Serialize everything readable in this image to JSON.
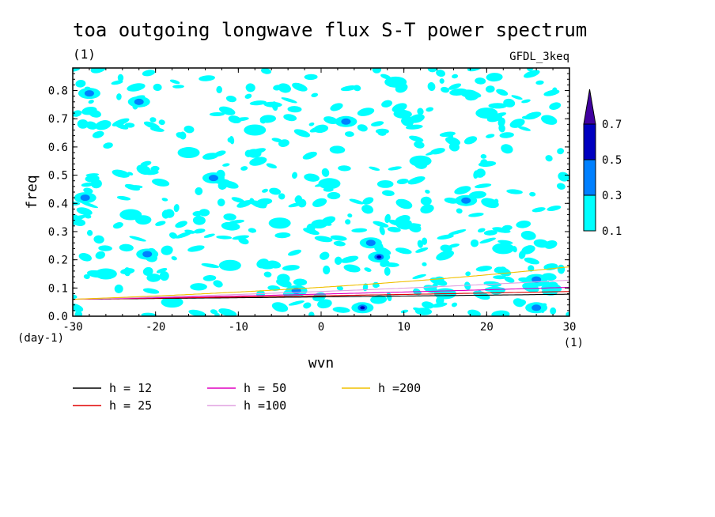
{
  "chart_data": {
    "type": "heatmap",
    "title": "toa outgoing longwave flux S-T power spectrum",
    "subtitle_left": "(1)",
    "subtitle_right": "GFDL_3keq",
    "xlabel": "wvn",
    "ylabel": "freq",
    "x_unit": "(1)",
    "y_unit": "(day-1)",
    "xlim": [
      -30,
      30
    ],
    "ylim": [
      0.0,
      0.88
    ],
    "x_ticks": [
      -30,
      -20,
      -10,
      0,
      10,
      20,
      30
    ],
    "x_tick_labels": [
      "-30",
      "-20",
      "-10",
      "0",
      "10",
      "20",
      "30"
    ],
    "y_ticks": [
      0.0,
      0.1,
      0.2,
      0.3,
      0.4,
      0.5,
      0.6,
      0.7,
      0.8
    ],
    "y_tick_labels": [
      "0.0",
      "0.1",
      "0.2",
      "0.3",
      "0.4",
      "0.5",
      "0.6",
      "0.7",
      "0.8"
    ],
    "colorbar": {
      "levels": [
        0.1,
        0.3,
        0.5,
        0.7
      ],
      "labels": [
        "0.1",
        "0.3",
        "0.5",
        "0.7"
      ],
      "colors": [
        "#00ffff",
        "#0080ff",
        "#0000c0",
        "#4000a0"
      ]
    },
    "contour_blobs": [
      {
        "x": -28,
        "y": 0.79,
        "level": 1
      },
      {
        "x": -22,
        "y": 0.76,
        "level": 1
      },
      {
        "x": -28.5,
        "y": 0.42,
        "level": 1
      },
      {
        "x": -21,
        "y": 0.22,
        "level": 1
      },
      {
        "x": -13,
        "y": 0.49,
        "level": 1
      },
      {
        "x": -23,
        "y": 0.36,
        "level": 0
      },
      {
        "x": -3,
        "y": 0.09,
        "level": 1
      },
      {
        "x": 3,
        "y": 0.69,
        "level": 1
      },
      {
        "x": 6,
        "y": 0.26,
        "level": 1
      },
      {
        "x": 7,
        "y": 0.21,
        "level": 2
      },
      {
        "x": 5,
        "y": 0.03,
        "level": 2
      },
      {
        "x": 17.5,
        "y": 0.41,
        "level": 1
      },
      {
        "x": 26,
        "y": 0.13,
        "level": 1
      },
      {
        "x": 26,
        "y": 0.03,
        "level": 1
      },
      {
        "x": -16,
        "y": 0.58,
        "level": 0
      },
      {
        "x": -26,
        "y": 0.15,
        "level": 0
      },
      {
        "x": 12,
        "y": 0.55,
        "level": 0
      },
      {
        "x": 20,
        "y": 0.72,
        "level": 0
      },
      {
        "x": -8,
        "y": 0.66,
        "level": 0
      },
      {
        "x": 15,
        "y": 0.08,
        "level": 0
      },
      {
        "x": -5,
        "y": 0.33,
        "level": 0
      },
      {
        "x": 22,
        "y": 0.24,
        "level": 0
      },
      {
        "x": -18,
        "y": 0.05,
        "level": 0
      },
      {
        "x": 9,
        "y": 0.83,
        "level": 0
      },
      {
        "x": -11,
        "y": 0.18,
        "level": 0
      },
      {
        "x": 1,
        "y": 0.47,
        "level": 0
      }
    ],
    "series": [
      {
        "name": "h = 12",
        "h": 12,
        "color": "#000000"
      },
      {
        "name": "h = 25",
        "h": 25,
        "color": "#e00000"
      },
      {
        "name": "h = 50",
        "h": 50,
        "color": "#e000c0"
      },
      {
        "name": "h =100",
        "h": 100,
        "color": "#e0a0e0"
      },
      {
        "name": "h =200",
        "h": 200,
        "color": "#f0c000"
      }
    ]
  }
}
